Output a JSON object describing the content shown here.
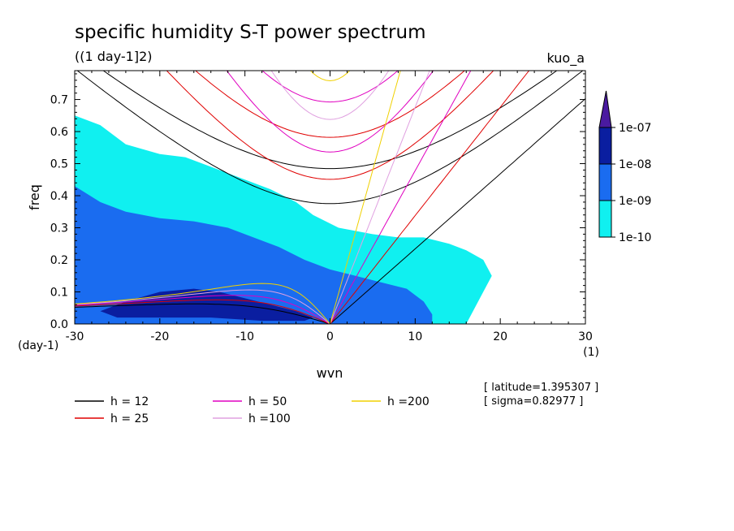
{
  "chart_data": {
    "type": "heatmap",
    "title": "specific humidity S-T power spectrum",
    "subtitle": "((1 day-1]2)",
    "corner_tag": "kuo_a",
    "xlabel": "wvn",
    "ylabel": "freq",
    "x_unit": "(1)",
    "y_unit": "(day-1)",
    "xlim": [
      -30,
      30
    ],
    "ylim": [
      0,
      0.79
    ],
    "x_ticks": [
      -30,
      -20,
      -10,
      0,
      10,
      20,
      30
    ],
    "x_tick_labels": [
      "-30",
      "-20",
      "-10",
      "0",
      "10",
      "20",
      "30"
    ],
    "y_ticks": [
      0,
      0.1,
      0.2,
      0.3,
      0.4,
      0.5,
      0.6,
      0.7
    ],
    "y_tick_labels": [
      "0.0",
      "0.1",
      "0.2",
      "0.3",
      "0.4",
      "0.5",
      "0.6",
      "0.7"
    ],
    "colorbar": {
      "levels": [
        "1e-07",
        "1e-08",
        "1e-09",
        "1e-10"
      ],
      "colors": [
        "#4a1aa0",
        "#0a1ea0",
        "#1a6cf0",
        "#10f0f0"
      ]
    },
    "shaded_regions": [
      {
        "level": "1e-10",
        "color": "#10f0f0",
        "polygon": [
          [
            -30,
            0
          ],
          [
            -30,
            0.65
          ],
          [
            -27,
            0.62
          ],
          [
            -24,
            0.56
          ],
          [
            -20,
            0.53
          ],
          [
            -17,
            0.52
          ],
          [
            -15,
            0.5
          ],
          [
            -13,
            0.48
          ],
          [
            -10,
            0.45
          ],
          [
            -7,
            0.42
          ],
          [
            -4,
            0.38
          ],
          [
            -2,
            0.34
          ],
          [
            1,
            0.3
          ],
          [
            5,
            0.28
          ],
          [
            8,
            0.27
          ],
          [
            11,
            0.27
          ],
          [
            14,
            0.25
          ],
          [
            16,
            0.23
          ],
          [
            18,
            0.2
          ],
          [
            19,
            0.15
          ],
          [
            18,
            0.1
          ],
          [
            17,
            0.05
          ],
          [
            16,
            0
          ]
        ]
      },
      {
        "level": "1e-09",
        "color": "#1a6cf0",
        "polygon": [
          [
            -30,
            0
          ],
          [
            -30,
            0.43
          ],
          [
            -27,
            0.38
          ],
          [
            -24,
            0.35
          ],
          [
            -20,
            0.33
          ],
          [
            -16,
            0.32
          ],
          [
            -12,
            0.3
          ],
          [
            -9,
            0.27
          ],
          [
            -6,
            0.24
          ],
          [
            -3,
            0.2
          ],
          [
            0,
            0.17
          ],
          [
            3,
            0.15
          ],
          [
            6,
            0.13
          ],
          [
            9,
            0.11
          ],
          [
            11,
            0.07
          ],
          [
            12,
            0.03
          ],
          [
            12,
            0
          ]
        ]
      },
      {
        "level": "1e-08",
        "color": "#0a1ea0",
        "polygon": [
          [
            -27,
            0.04
          ],
          [
            -24,
            0.07
          ],
          [
            -20,
            0.1
          ],
          [
            -16,
            0.11
          ],
          [
            -13,
            0.1
          ],
          [
            -10,
            0.08
          ],
          [
            -7,
            0.06
          ],
          [
            -4,
            0.04
          ],
          [
            -2,
            0.02
          ],
          [
            -3,
            0.01
          ],
          [
            -8,
            0.01
          ],
          [
            -14,
            0.02
          ],
          [
            -20,
            0.02
          ],
          [
            -25,
            0.02
          ]
        ]
      }
    ],
    "series": [
      {
        "name": "h = 12",
        "color": "#000000",
        "h": 12
      },
      {
        "name": "h = 25",
        "color": "#e00000",
        "h": 25
      },
      {
        "name": "h = 50",
        "color": "#e000c0",
        "h": 50
      },
      {
        "name": "h =100",
        "color": "#e0a0e0",
        "h": 100
      },
      {
        "name": "h =200",
        "color": "#f0d000",
        "h": 200
      }
    ],
    "annotations": [
      "[ latitude=1.395307 ]",
      "[ sigma=0.82977 ]"
    ]
  }
}
